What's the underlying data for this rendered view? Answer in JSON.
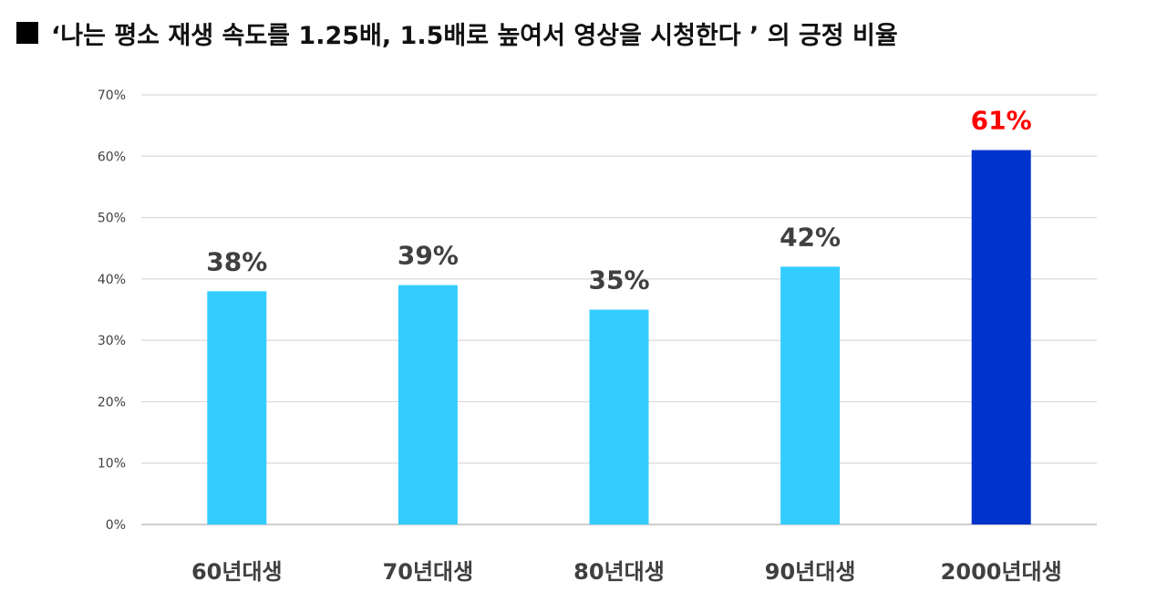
{
  "title": "‘나는 평소 재생 속도를 1.25배, 1.5배로 높여서 영상을 시청한다 ’ 의 긍정 비율",
  "title_marker_icon": "black-square-icon",
  "colors": {
    "bar": "#33ccff",
    "highlight_bar": "#0033cc",
    "label": "#404040",
    "highlight_label": "#ff0000",
    "grid": "#d9d9d9"
  },
  "chart_data": {
    "type": "bar",
    "title": "‘나는 평소 재생 속도를 1.25배, 1.5배로 높여서 영상을 시청한다 ’ 의 긍정 비율",
    "xlabel": "",
    "ylabel": "",
    "categories": [
      "60년대생",
      "70년대생",
      "80년대생",
      "90년대생",
      "2000년대생"
    ],
    "values": [
      38,
      39,
      35,
      42,
      61
    ],
    "data_labels": [
      "38%",
      "39%",
      "35%",
      "42%",
      "61%"
    ],
    "highlight_index": 4,
    "ylim": [
      0,
      70
    ],
    "yticks": [
      0,
      10,
      20,
      30,
      40,
      50,
      60,
      70
    ],
    "ytick_labels": [
      "0%",
      "10%",
      "20%",
      "30%",
      "40%",
      "50%",
      "60%",
      "70%"
    ],
    "grid": true,
    "legend": "none"
  }
}
